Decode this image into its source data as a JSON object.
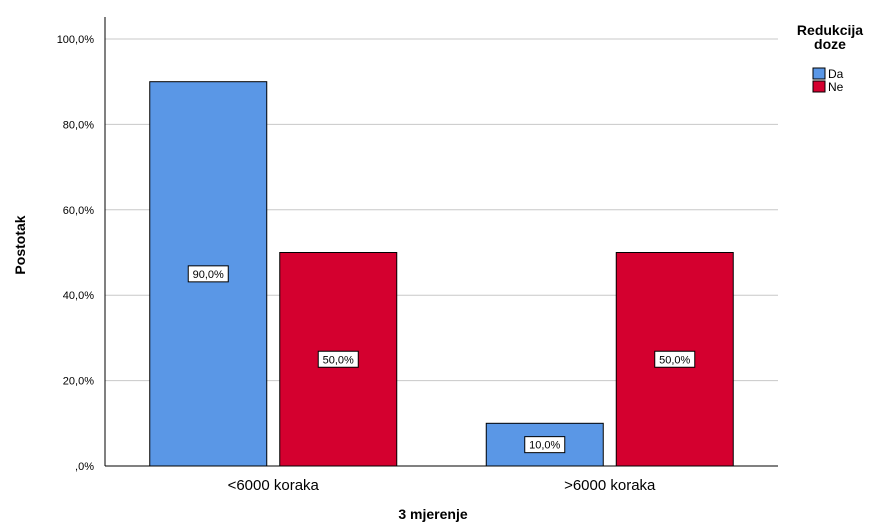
{
  "chart_data": {
    "type": "bar",
    "categories": [
      "<6000 koraka",
      ">6000 koraka"
    ],
    "series": [
      {
        "name": "Da",
        "values": [
          90.0,
          10.0
        ],
        "color": "#5a97e6"
      },
      {
        "name": "Ne",
        "values": [
          50.0,
          50.0
        ],
        "color": "#d4002f"
      }
    ],
    "data_labels": [
      [
        "90,0%",
        "10,0%"
      ],
      [
        "50,0%",
        "50,0%"
      ]
    ],
    "xlabel": "3 mjerenje",
    "ylabel": "Postotak",
    "ylim": [
      0,
      100
    ],
    "yticks": [
      0,
      20,
      40,
      60,
      80,
      100
    ],
    "ytick_labels": [
      ",0%",
      "20,0%",
      "40,0%",
      "60,0%",
      "80,0%",
      "100,0%"
    ],
    "grid": true,
    "legend": {
      "title": [
        "Redukcija",
        "doze"
      ],
      "position": "top-right"
    }
  }
}
